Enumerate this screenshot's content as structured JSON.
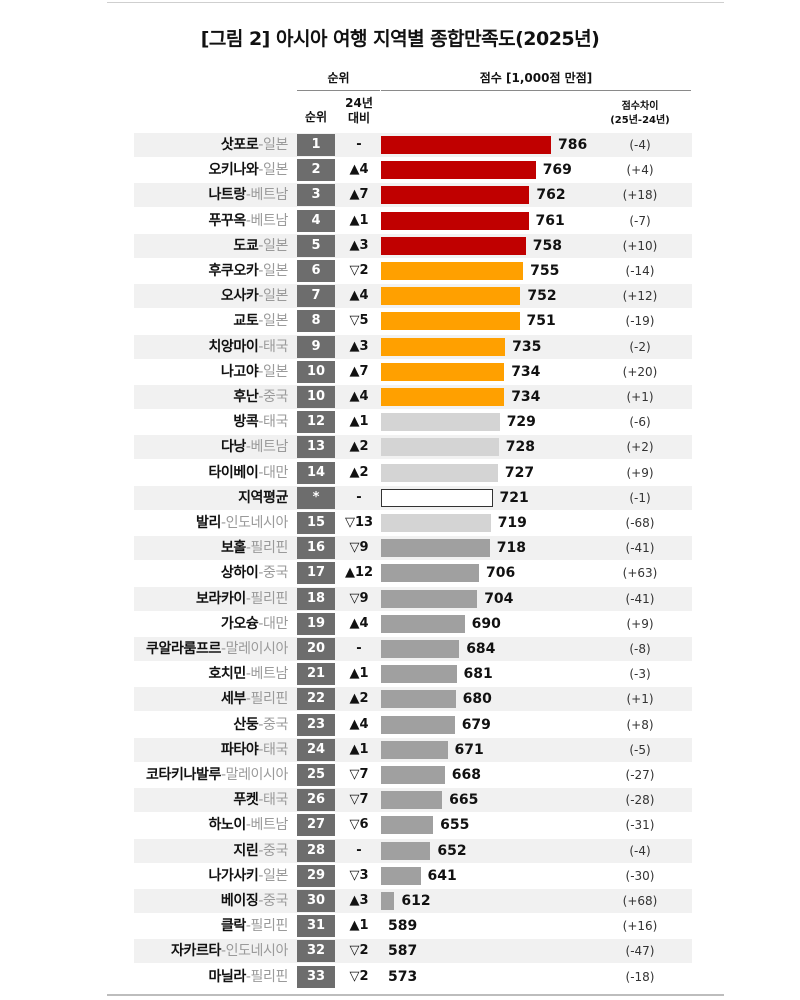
{
  "title": "[그림 2] 아시아 여행 지역별 종합만족도(2025년)",
  "header": {
    "rank_group": "순위",
    "rank": "순위",
    "change_line1": "24년",
    "change_line2": "대비",
    "score_group": "점수 [1,000점 만점]",
    "diff_line1": "점수차이",
    "diff_line2": "(25년-24년)"
  },
  "colors": {
    "top": "#c00000",
    "high": "#ffa000",
    "mid": "#d4d4d4",
    "low": "#a0a0a0",
    "avg": "#ffffff"
  },
  "chart_data": {
    "type": "bar",
    "orientation": "horizontal",
    "title": "[그림 2] 아시아 여행 지역별 종합만족도(2025년)",
    "value_label": "점수 [1,000점 만점]",
    "rows": [
      {
        "city": "삿포로",
        "country": "-일본",
        "rank": "1",
        "change": "-",
        "score": 786,
        "diff": "(-4)",
        "tier": "top"
      },
      {
        "city": "오키나와",
        "country": "-일본",
        "rank": "2",
        "change": "▲4",
        "score": 769,
        "diff": "(+4)",
        "tier": "top"
      },
      {
        "city": "나트랑",
        "country": "-베트남",
        "rank": "3",
        "change": "▲7",
        "score": 762,
        "diff": "(+18)",
        "tier": "top"
      },
      {
        "city": "푸꾸옥",
        "country": "-베트남",
        "rank": "4",
        "change": "▲1",
        "score": 761,
        "diff": "(-7)",
        "tier": "top"
      },
      {
        "city": "도쿄",
        "country": "-일본",
        "rank": "5",
        "change": "▲3",
        "score": 758,
        "diff": "(+10)",
        "tier": "top"
      },
      {
        "city": "후쿠오카",
        "country": "-일본",
        "rank": "6",
        "change": "▽2",
        "score": 755,
        "diff": "(-14)",
        "tier": "high"
      },
      {
        "city": "오사카",
        "country": "-일본",
        "rank": "7",
        "change": "▲4",
        "score": 752,
        "diff": "(+12)",
        "tier": "high"
      },
      {
        "city": "교토",
        "country": "-일본",
        "rank": "8",
        "change": "▽5",
        "score": 751,
        "diff": "(-19)",
        "tier": "high"
      },
      {
        "city": "치앙마이",
        "country": "-태국",
        "rank": "9",
        "change": "▲3",
        "score": 735,
        "diff": "(-2)",
        "tier": "high"
      },
      {
        "city": "나고야",
        "country": "-일본",
        "rank": "10",
        "change": "▲7",
        "score": 734,
        "diff": "(+20)",
        "tier": "high"
      },
      {
        "city": "후난",
        "country": "-중국",
        "rank": "10",
        "change": "▲4",
        "score": 734,
        "diff": "(+1)",
        "tier": "high"
      },
      {
        "city": "방콕",
        "country": "-태국",
        "rank": "12",
        "change": "▲1",
        "score": 729,
        "diff": "(-6)",
        "tier": "mid"
      },
      {
        "city": "다낭",
        "country": "-베트남",
        "rank": "13",
        "change": "▲2",
        "score": 728,
        "diff": "(+2)",
        "tier": "mid"
      },
      {
        "city": "타이베이",
        "country": "-대만",
        "rank": "14",
        "change": "▲2",
        "score": 727,
        "diff": "(+9)",
        "tier": "mid"
      },
      {
        "city": "지역평균",
        "country": "",
        "rank": "*",
        "change": "-",
        "score": 721,
        "diff": "(-1)",
        "tier": "avg"
      },
      {
        "city": "발리",
        "country": "-인도네시아",
        "rank": "15",
        "change": "▽13",
        "score": 719,
        "diff": "(-68)",
        "tier": "mid"
      },
      {
        "city": "보홀",
        "country": "-필리핀",
        "rank": "16",
        "change": "▽9",
        "score": 718,
        "diff": "(-41)",
        "tier": "low"
      },
      {
        "city": "상하이",
        "country": "-중국",
        "rank": "17",
        "change": "▲12",
        "score": 706,
        "diff": "(+63)",
        "tier": "low"
      },
      {
        "city": "보라카이",
        "country": "-필리핀",
        "rank": "18",
        "change": "▽9",
        "score": 704,
        "diff": "(-41)",
        "tier": "low"
      },
      {
        "city": "가오슝",
        "country": "-대만",
        "rank": "19",
        "change": "▲4",
        "score": 690,
        "diff": "(+9)",
        "tier": "low"
      },
      {
        "city": "쿠알라룸프르",
        "country": "-말레이시아",
        "rank": "20",
        "change": "-",
        "score": 684,
        "diff": "(-8)",
        "tier": "low"
      },
      {
        "city": "호치민",
        "country": "-베트남",
        "rank": "21",
        "change": "▲1",
        "score": 681,
        "diff": "(-3)",
        "tier": "low"
      },
      {
        "city": "세부",
        "country": "-필리핀",
        "rank": "22",
        "change": "▲2",
        "score": 680,
        "diff": "(+1)",
        "tier": "low"
      },
      {
        "city": "산둥",
        "country": "-중국",
        "rank": "23",
        "change": "▲4",
        "score": 679,
        "diff": "(+8)",
        "tier": "low"
      },
      {
        "city": "파타야",
        "country": "-태국",
        "rank": "24",
        "change": "▲1",
        "score": 671,
        "diff": "(-5)",
        "tier": "low"
      },
      {
        "city": "코타키나발루",
        "country": "-말레이시아",
        "rank": "25",
        "change": "▽7",
        "score": 668,
        "diff": "(-27)",
        "tier": "low"
      },
      {
        "city": "푸켓",
        "country": "-태국",
        "rank": "26",
        "change": "▽7",
        "score": 665,
        "diff": "(-28)",
        "tier": "low"
      },
      {
        "city": "하노이",
        "country": "-베트남",
        "rank": "27",
        "change": "▽6",
        "score": 655,
        "diff": "(-31)",
        "tier": "low"
      },
      {
        "city": "지린",
        "country": "-중국",
        "rank": "28",
        "change": "-",
        "score": 652,
        "diff": "(-4)",
        "tier": "low"
      },
      {
        "city": "나가사키",
        "country": "-일본",
        "rank": "29",
        "change": "▽3",
        "score": 641,
        "diff": "(-30)",
        "tier": "low"
      },
      {
        "city": "베이징",
        "country": "-중국",
        "rank": "30",
        "change": "▲3",
        "score": 612,
        "diff": "(+68)",
        "tier": "low"
      },
      {
        "city": "클락",
        "country": "-필리핀",
        "rank": "31",
        "change": "▲1",
        "score": 589,
        "diff": "(+16)",
        "tier": "low"
      },
      {
        "city": "자카르타",
        "country": "-인도네시아",
        "rank": "32",
        "change": "▽2",
        "score": 587,
        "diff": "(-47)",
        "tier": "low"
      },
      {
        "city": "마닐라",
        "country": "-필리핀",
        "rank": "33",
        "change": "▽2",
        "score": 573,
        "diff": "(-18)",
        "tier": "low"
      }
    ]
  }
}
